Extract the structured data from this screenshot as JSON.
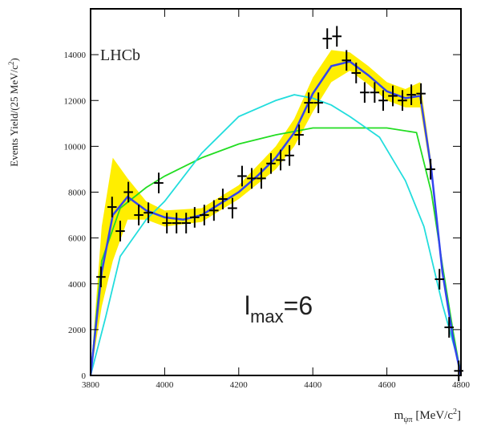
{
  "chart_data": {
    "type": "fit-plot",
    "experiment_label": "LHCb",
    "annotation": {
      "base": "l",
      "sub": "max",
      "rest": "=6"
    },
    "y_label": {
      "main": "Events Yield/(25 MeV/c",
      "sup": "2",
      "end": ")"
    },
    "x_label": {
      "main": "m",
      "sub": "ψπ",
      "unit": " [MeV/c",
      "sup": "2",
      "end": "]"
    },
    "xlim": [
      3800,
      4800
    ],
    "xticks": [
      3800,
      4000,
      4200,
      4400,
      4600,
      4800
    ],
    "ylim": [
      0,
      16000
    ],
    "yticks": [
      0,
      2000,
      4000,
      6000,
      8000,
      10000,
      12000,
      14000
    ],
    "band": {
      "color": "#ffee00",
      "x": [
        3800,
        3830,
        3860,
        3900,
        3950,
        4000,
        4100,
        4200,
        4300,
        4350,
        4400,
        4450,
        4500,
        4550,
        4600,
        4650,
        4690,
        4720,
        4750,
        4780,
        4800
      ],
      "lower": [
        0,
        3000,
        5000,
        6800,
        6800,
        6500,
        6700,
        7700,
        9000,
        10000,
        11500,
        12800,
        13300,
        12700,
        12000,
        11700,
        11700,
        8700,
        4300,
        1400,
        0
      ],
      "upper": [
        0,
        6500,
        9500,
        8600,
        7600,
        7200,
        7300,
        8300,
        10000,
        11200,
        13000,
        14200,
        14100,
        13500,
        12800,
        12500,
        12800,
        9300,
        4700,
        1600,
        0
      ]
    },
    "curves": [
      {
        "color": "#22dd22",
        "x": [
          3800,
          3830,
          3880,
          3950,
          4000,
          4100,
          4200,
          4300,
          4400,
          4500,
          4600,
          4680,
          4720,
          4750,
          4780,
          4800
        ],
        "values": [
          0,
          5000,
          7300,
          8200,
          8700,
          9500,
          10100,
          10500,
          10800,
          10800,
          10800,
          10600,
          8000,
          4800,
          1800,
          0
        ]
      },
      {
        "color": "#22dddd",
        "x": [
          3800,
          3840,
          3880,
          3950,
          4000,
          4100,
          4200,
          4300,
          4350,
          4400,
          4450,
          4500,
          4580,
          4650,
          4700,
          4750,
          4800
        ],
        "values": [
          0,
          2500,
          5200,
          6800,
          7600,
          9700,
          11300,
          12000,
          12250,
          12100,
          11800,
          11300,
          10400,
          8500,
          6500,
          3100,
          200
        ]
      },
      {
        "color": "#3344ee",
        "x": [
          3800,
          3830,
          3860,
          3900,
          3950,
          4000,
          4050,
          4100,
          4150,
          4200,
          4250,
          4300,
          4350,
          4400,
          4450,
          4500,
          4550,
          4600,
          4650,
          4690,
          4720,
          4750,
          4780,
          4800
        ],
        "values": [
          0,
          4500,
          7000,
          7800,
          7200,
          6900,
          6800,
          7000,
          7500,
          8000,
          8700,
          9500,
          10600,
          12300,
          13500,
          13700,
          13100,
          12400,
          12100,
          12200,
          9000,
          4500,
          1500,
          0
        ]
      }
    ],
    "points": {
      "color": "#000000",
      "yerr": 450,
      "xerr": 12.5,
      "x": [
        3828,
        3858,
        3880,
        3902,
        3930,
        3956,
        3984,
        4006,
        4032,
        4058,
        4081,
        4107,
        4133,
        4157,
        4183,
        4209,
        4235,
        4261,
        4287,
        4313,
        4337,
        4363,
        4389,
        4415,
        4439,
        4465,
        4491,
        4517,
        4540,
        4567,
        4590,
        4616,
        4642,
        4666,
        4692,
        4718,
        4742,
        4768,
        4794
      ],
      "values": [
        4300,
        7350,
        6300,
        8000,
        7000,
        7100,
        8400,
        6650,
        6650,
        6650,
        6900,
        7000,
        7200,
        7700,
        7300,
        8700,
        8600,
        8600,
        9250,
        9400,
        9600,
        10500,
        11900,
        11900,
        14700,
        14800,
        13750,
        13200,
        12350,
        12350,
        12000,
        12200,
        12000,
        12250,
        12300,
        9000,
        4200,
        2100,
        200
      ]
    }
  }
}
